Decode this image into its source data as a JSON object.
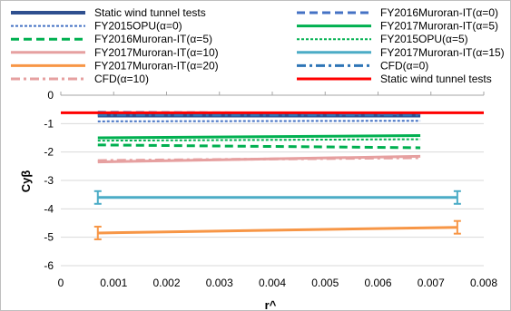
{
  "chart_data": {
    "type": "line",
    "xlabel": "r^",
    "ylabel": "Cyβ",
    "xlim": [
      0,
      0.008
    ],
    "ylim": [
      -6,
      0
    ],
    "x_ticks": [
      "0",
      "0.001",
      "0.002",
      "0.003",
      "0.004",
      "0.005",
      "0.006",
      "0.007",
      "0.008"
    ],
    "y_ticks": [
      "0",
      "-1",
      "-2",
      "-3",
      "-4",
      "-5",
      "-6"
    ],
    "grid": "horizontal",
    "legend_position": "top",
    "series": [
      {
        "name": "Static wind tunnel tests",
        "color": "#2F4F8F",
        "style": "solid-thick",
        "x": [
          0.0007,
          0.0068
        ],
        "y": [
          -0.72,
          -0.72
        ]
      },
      {
        "name": "FY2016Muroran-IT(α=0)",
        "color": "#4472C4",
        "style": "dashed",
        "x": [
          0.0007,
          0.0068
        ],
        "y": [
          -0.6,
          -0.65
        ]
      },
      {
        "name": "FY2015OPU(α=0)",
        "color": "#4472C4",
        "style": "dotted",
        "x": [
          0.0007,
          0.0068
        ],
        "y": [
          -0.92,
          -0.9
        ]
      },
      {
        "name": "FY2017Muroran-IT(α=5)",
        "color": "#00B050",
        "style": "solid",
        "x": [
          0.0007,
          0.0068
        ],
        "y": [
          -1.5,
          -1.42
        ]
      },
      {
        "name": "FY2016Muroran-IT(α=5)",
        "color": "#00B050",
        "style": "dashed",
        "x": [
          0.0007,
          0.0068
        ],
        "y": [
          -1.75,
          -1.85
        ]
      },
      {
        "name": "FY2015OPU(α=5)",
        "color": "#00B050",
        "style": "dotted",
        "x": [
          0.0007,
          0.0068
        ],
        "y": [
          -1.6,
          -1.55
        ]
      },
      {
        "name": "FY2017Muroran-IT(α=10)",
        "color": "#E6A0A0",
        "style": "solid",
        "x": [
          0.0007,
          0.0068
        ],
        "y": [
          -2.35,
          -2.15
        ]
      },
      {
        "name": "FY2017Muroran-IT(α=15)",
        "color": "#4BACC6",
        "style": "solid",
        "x": [
          0.0007,
          0.0075
        ],
        "y": [
          -3.6,
          -3.6
        ]
      },
      {
        "name": "FY2017Muroran-IT(α=20)",
        "color": "#F79646",
        "style": "solid",
        "x": [
          0.0007,
          0.0075
        ],
        "y": [
          -4.85,
          -4.65
        ]
      },
      {
        "name": "CFD(α=0)",
        "color": "#2E75B6",
        "style": "dash-dot",
        "x": [
          0.0007,
          0.0068
        ],
        "y": [
          -0.7,
          -0.7
        ]
      },
      {
        "name": "CFD(α=10)",
        "color": "#E6A0A0",
        "style": "dash-dot",
        "x": [
          0.0007,
          0.0068
        ],
        "y": [
          -2.3,
          -2.2
        ]
      },
      {
        "name": "Static wind tunnel tests",
        "color": "#FF0000",
        "style": "solid",
        "x": [
          0.0,
          0.008
        ],
        "y": [
          -0.62,
          -0.62
        ]
      }
    ]
  }
}
